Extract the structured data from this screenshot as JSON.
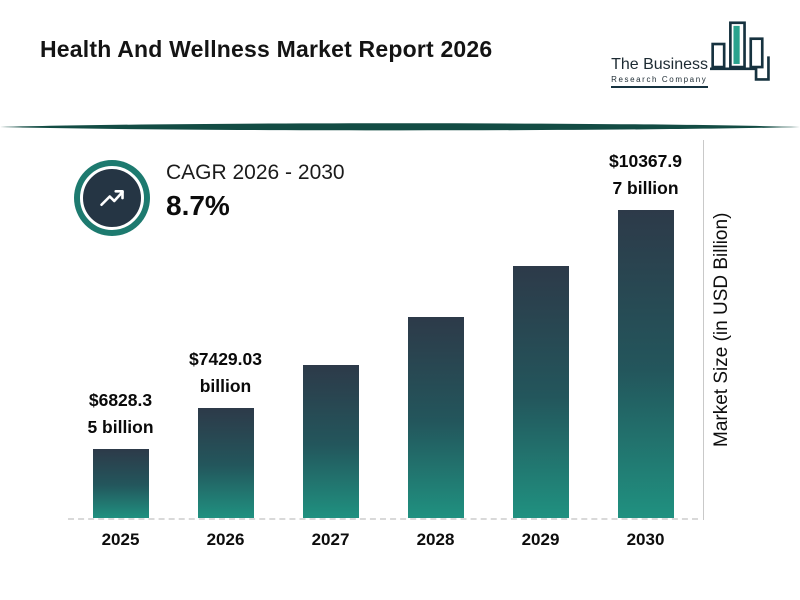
{
  "header": {
    "title": "Health And Wellness Market Report 2026",
    "logo": {
      "line1": "The Business",
      "line2": "Research Company"
    }
  },
  "cagr": {
    "label": "CAGR 2026 - 2030",
    "value": "8.7%"
  },
  "colors": {
    "bar_gradient_top": "#2d3a49",
    "bar_gradient_bottom": "#209180",
    "divider_teal": "#134c44",
    "badge_ring_teal": "#1d7a6f",
    "badge_center": "#253544",
    "logo_teal": "#2aa38e",
    "logo_navy": "#16323f"
  },
  "chart_data": {
    "type": "bar",
    "title": "Health And Wellness Market Report 2026",
    "categories": [
      "2025",
      "2026",
      "2027",
      "2028",
      "2029",
      "2030"
    ],
    "values": [
      6828.35,
      7429.03,
      8075.36,
      8777.92,
      9541.6,
      10367.97
    ],
    "value_labels": [
      [
        "$6828.3",
        "5 billion"
      ],
      [
        "$7429.03",
        "billion"
      ],
      null,
      null,
      null,
      [
        "$10367.9",
        "7 billion"
      ]
    ],
    "xlabel": "",
    "ylabel": "Market Size (in USD Billion)",
    "cagr_annotation": "CAGR 2026 - 2030 : 8.7%",
    "legend": false,
    "grid": false,
    "unit": "USD Billion"
  }
}
